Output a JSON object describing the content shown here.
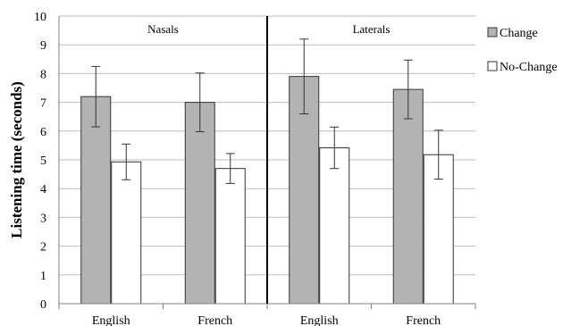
{
  "chart_data": {
    "type": "bar",
    "ylabel": "Listening time (seconds)",
    "ylim": [
      0,
      10
    ],
    "yticks": [
      0,
      1,
      2,
      3,
      4,
      5,
      6,
      7,
      8,
      9,
      10
    ],
    "categories": [
      "English",
      "French",
      "English",
      "French"
    ],
    "groups": [
      {
        "label": "Nasals",
        "categories": [
          0,
          1
        ]
      },
      {
        "label": "Laterals",
        "categories": [
          2,
          3
        ]
      }
    ],
    "series": [
      {
        "name": "Change",
        "color": "#b3b3b3",
        "values": [
          7.2,
          7.0,
          7.9,
          7.45
        ],
        "error": [
          1.05,
          1.02,
          1.3,
          1.02
        ]
      },
      {
        "name": "No-Change",
        "color": "#ffffff",
        "values": [
          4.93,
          4.7,
          5.42,
          5.18
        ],
        "error": [
          0.62,
          0.52,
          0.72,
          0.85
        ]
      }
    ],
    "legend_position": "right"
  }
}
